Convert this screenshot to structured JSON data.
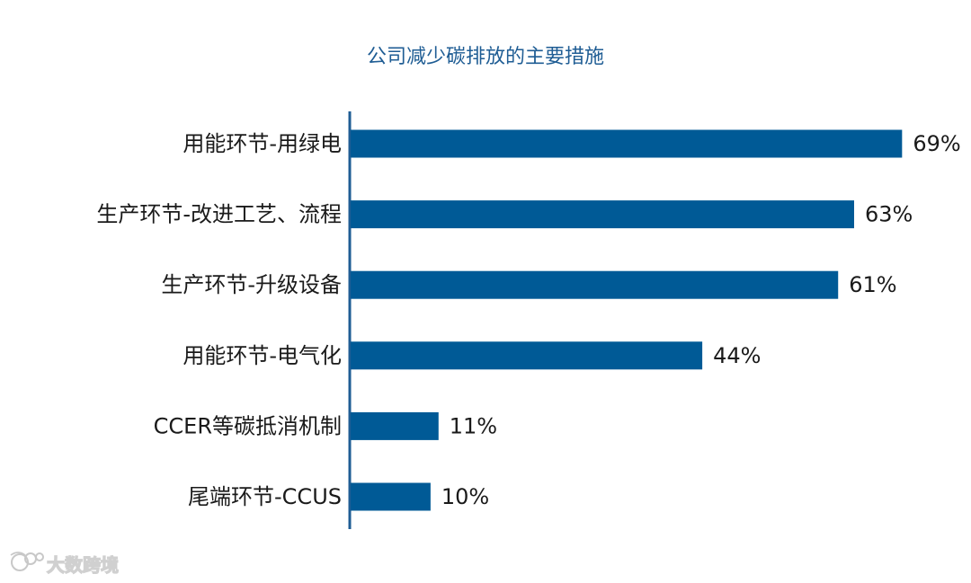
{
  "chart_data": {
    "type": "bar",
    "orientation": "horizontal",
    "title": "公司减少碳排放的主要措施",
    "categories": [
      "用能环节-用绿电",
      "生产环节-改进工艺、流程",
      "生产环节-升级设备",
      "用能环节-电气化",
      "CCER等碳抵消机制",
      "尾端环节-CCUS"
    ],
    "values": [
      69,
      63,
      61,
      44,
      11,
      10
    ],
    "value_labels": [
      "69%",
      "63%",
      "61%",
      "44%",
      "11%",
      "10%"
    ],
    "unit": "%",
    "xlim": [
      0,
      72
    ],
    "grid": false,
    "legend": "none",
    "colors": {
      "bar": "#005a96",
      "title": "#1f5d94",
      "axis": "#1f5d94",
      "text": "#1a1a1a"
    }
  },
  "watermark": {
    "text": "大数跨境",
    "icon": "brand-logo-icon"
  }
}
